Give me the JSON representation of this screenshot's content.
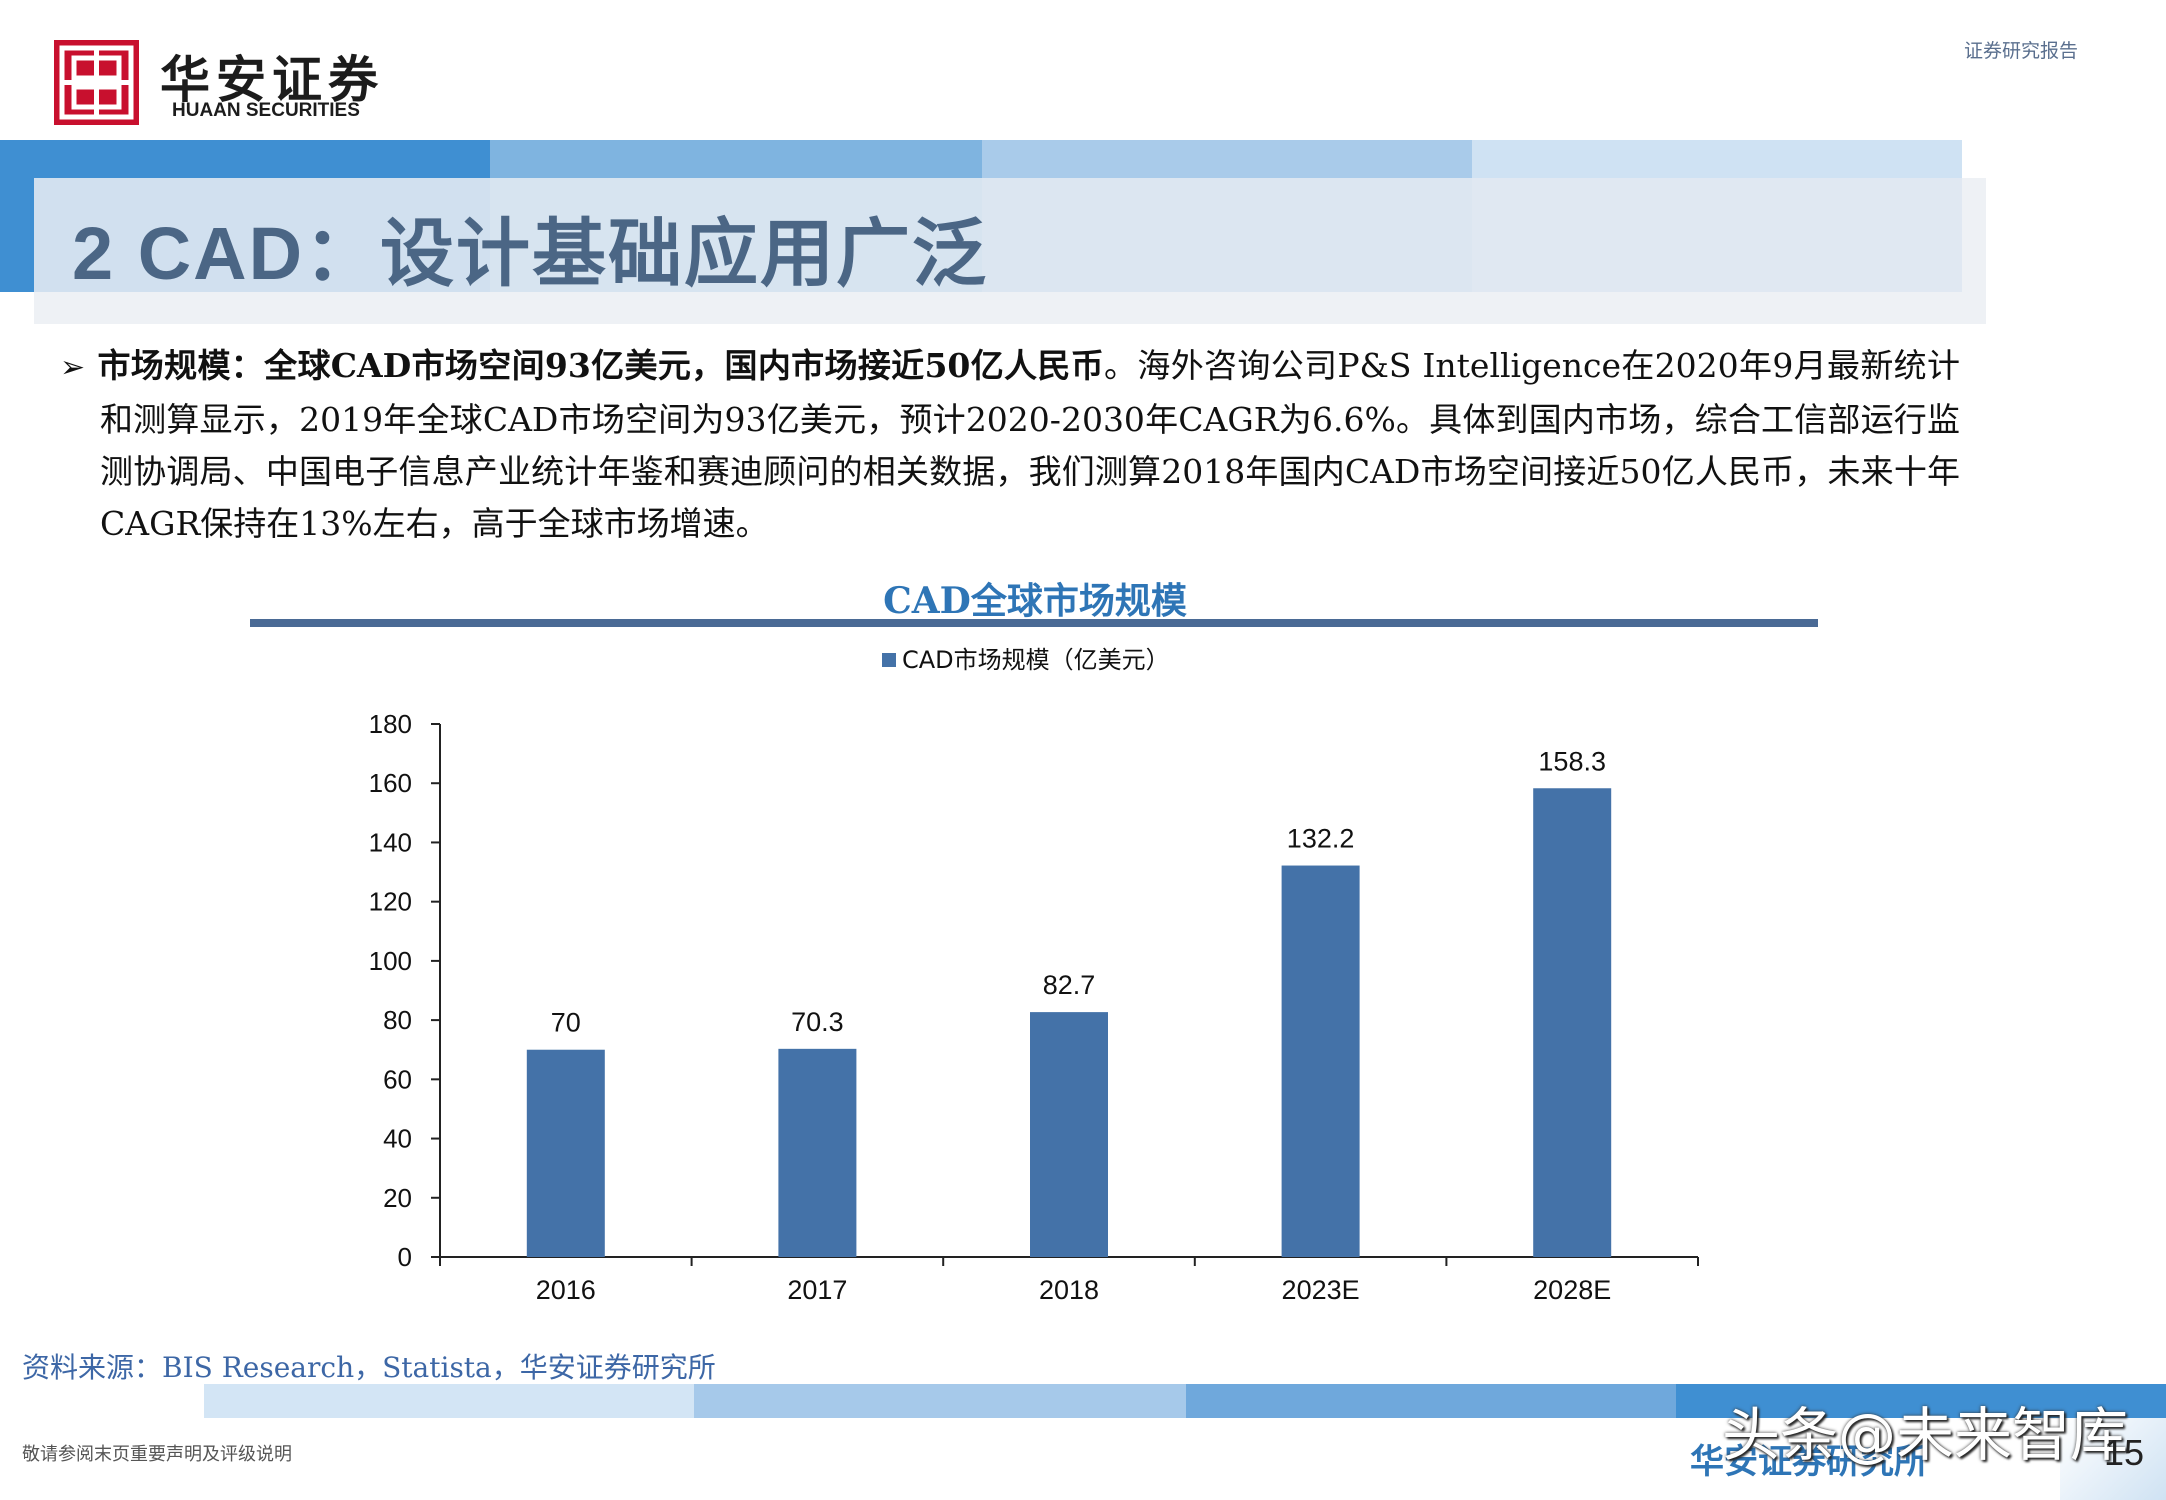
{
  "header": {
    "brand_cn": "华安证券",
    "brand_en": "HUAAN SECURITIES",
    "report_type": "证券研究报告"
  },
  "title": "2 CAD：设计基础应用广泛",
  "body": {
    "lead": "市场规模：全球CAD市场空间93亿美元，国内市场接近50亿人民币",
    "text": "。海外咨询公司P&S Intelligence在2020年9月最新统计和测算显示，2019年全球CAD市场空间为93亿美元，预计2020-2030年CAGR为6.6%。具体到国内市场，综合工信部运行监测协调局、中国电子信息产业统计年鉴和赛迪顾问的相关数据，我们测算2018年国内CAD市场空间接近50亿人民币，未来十年CAGR保持在13%左右，高于全球市场增速。"
  },
  "chart_data": {
    "type": "bar",
    "title": "CAD全球市场规模",
    "categories": [
      "2016",
      "2017",
      "2018",
      "2023E",
      "2028E"
    ],
    "series": [
      {
        "name": "CAD市场规模（亿美元）",
        "values": [
          70,
          70.3,
          82.7,
          132.2,
          158.3
        ]
      }
    ],
    "data_labels": [
      "70",
      "70.3",
      "82.7",
      "132.2",
      "158.3"
    ],
    "yticks": [
      "0",
      "20",
      "40",
      "60",
      "80",
      "100",
      "120",
      "140",
      "160",
      "180"
    ],
    "ylim": [
      0,
      180
    ],
    "legend_position": "top-center",
    "grid": false,
    "bar_color": "#4472a8"
  },
  "footer": {
    "source": "资料来源：BIS Research，Statista，华安证券研究所",
    "disclaimer": "敬请参阅末页重要声明及评级说明",
    "brand": "华安证券研究所",
    "watermark": "头条@未来智库",
    "page": "15"
  },
  "colors": {
    "brand_red": "#c8102e",
    "title_blue": "#4b6685",
    "accent_blue": "#2e75b6"
  }
}
